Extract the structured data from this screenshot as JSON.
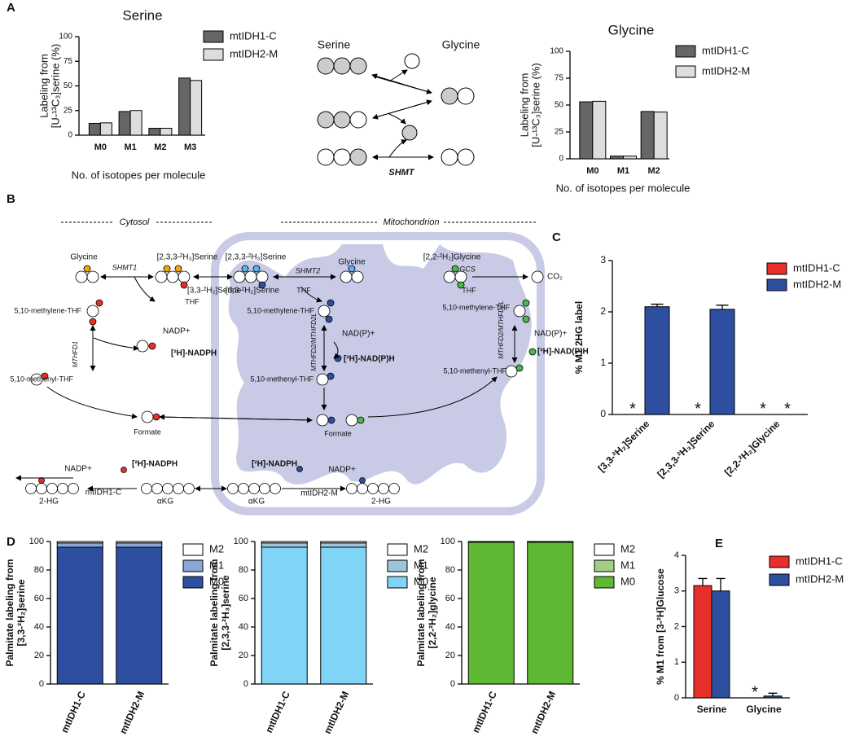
{
  "panel_labels": [
    "A",
    "B",
    "C",
    "D",
    "E"
  ],
  "diagram_a": {
    "left": "Serine",
    "right": "Glycine",
    "enzyme": "SHMT"
  },
  "diagram_b": {
    "labels": [
      "Cytosol",
      "Mitochondrion",
      "Glycine",
      "SHMT1",
      "[2,3,3-²H₃]Serine",
      "[3,3-²H₂]Serine",
      "THF",
      "5,10-methylene-THF",
      "NADP+",
      "MTHFD1",
      "[²H]-NADPH",
      "5,10-methenyl-THF",
      "Formate",
      "[2,3,3-²H₃]Serine",
      "[3,3-²H₂]Serine",
      "SHMT2",
      "Glycine",
      "THF",
      "5,10-methylene-THF",
      "MTHFD2/MTHFD2L",
      "NAD(P)+",
      "[²H]-NAD(P)H",
      "5,10-methenyl-THF",
      "Formate",
      "[2,2-²H₂]Glycine",
      "GCS",
      "CO₂",
      "THF",
      "5,10-methylene-THF",
      "MTHFD2/MTHFD2L",
      "NAD(P)+",
      "[²H]-NAD(P)H",
      "5,10-methenyl-THF",
      "NADP+",
      "[²H]-NADPH",
      "mtIDH1-C",
      "αKG",
      "2-HG",
      "[²H]-NADPH",
      "NADP+",
      "αKG",
      "mtIDH2-M",
      "2-HG"
    ]
  },
  "chart_data": [
    {
      "type": "bar",
      "title": "Serine",
      "categories": [
        "M0",
        "M1",
        "M2",
        "M3"
      ],
      "series": [
        {
          "name": "mtIDH1-C",
          "color": "#666666",
          "values": [
            12,
            24,
            7,
            58
          ]
        },
        {
          "name": "mtIDH2-M",
          "color": "#dddddd",
          "values": [
            12.5,
            25,
            7,
            55.5
          ]
        }
      ],
      "ylim": [
        0,
        100
      ],
      "yticks": [
        0,
        25,
        50,
        75,
        100
      ],
      "ylabel": [
        "Labeling from",
        "[U-¹³C₃]serine (%)"
      ],
      "xlabel": "No. of isotopes per molecule"
    },
    {
      "type": "bar",
      "title": "Glycine",
      "categories": [
        "M0",
        "M1",
        "M2"
      ],
      "series": [
        {
          "name": "mtIDH1-C",
          "color": "#666666",
          "values": [
            53,
            2.5,
            44
          ]
        },
        {
          "name": "mtIDH2-M",
          "color": "#dddddd",
          "values": [
            53.5,
            2.5,
            43.5
          ]
        }
      ],
      "ylim": [
        0,
        100
      ],
      "yticks": [
        0,
        25,
        50,
        75,
        100
      ],
      "ylabel": [
        "Labeling from",
        "[U-¹³C₃]serine (%)"
      ],
      "xlabel": "No. of isotopes per molecule"
    },
    {
      "type": "bar",
      "categories": [
        "[3,3-²H₂]Serine",
        "[2,3,3-²H₃]Serine",
        "[2,2-²H₂]Glycine"
      ],
      "series": [
        {
          "name": "mtIDH1-C",
          "color": "#e8302a",
          "values": [
            0,
            0,
            0
          ],
          "value_labels": [
            "*",
            "*",
            "*"
          ]
        },
        {
          "name": "mtIDH2-M",
          "color": "#2e4ea0",
          "values": [
            2.1,
            2.05,
            0
          ],
          "errors": [
            0.05,
            0.08,
            null
          ],
          "value_labels": [
            null,
            null,
            "*"
          ]
        }
      ],
      "ylim": [
        0,
        3
      ],
      "yticks": [
        0,
        1,
        2,
        3
      ],
      "ylabel": [
        "% M1 2HG label"
      ]
    },
    {
      "type": "bar",
      "stacked": true,
      "categories": [
        "mtIDH1-C",
        "mtIDH2-M"
      ],
      "series": [
        {
          "name": "M0",
          "color": "#2e4ea0",
          "values": [
            96,
            96
          ]
        },
        {
          "name": "M1",
          "color": "#8aa6d8",
          "values": [
            3,
            3
          ]
        },
        {
          "name": "M2",
          "color": "#ffffff",
          "values": [
            1,
            1
          ]
        }
      ],
      "ylim": [
        0,
        100
      ],
      "yticks": [
        0,
        20,
        40,
        60,
        80,
        100
      ],
      "ylabel": [
        "Palmitate labeling from",
        "[3,3-²H₂]serine"
      ]
    },
    {
      "type": "bar",
      "stacked": true,
      "categories": [
        "mtIDH1-C",
        "mtIDH2-M"
      ],
      "series": [
        {
          "name": "M0",
          "color": "#80d4f6",
          "values": [
            96,
            96
          ]
        },
        {
          "name": "M1",
          "color": "#9fc4d8",
          "values": [
            3,
            3
          ]
        },
        {
          "name": "M2",
          "color": "#ffffff",
          "values": [
            1,
            1
          ]
        }
      ],
      "ylim": [
        0,
        100
      ],
      "yticks": [
        0,
        20,
        40,
        60,
        80,
        100
      ],
      "ylabel": [
        "Palmitate labeling from",
        "[2,3,3-²H₃]serine"
      ]
    },
    {
      "type": "bar",
      "stacked": true,
      "categories": [
        "mtIDH1-C",
        "mtIDH2-M"
      ],
      "series": [
        {
          "name": "M0",
          "color": "#5fb832",
          "values": [
            99.5,
            99.5
          ]
        },
        {
          "name": "M1",
          "color": "#a3cf85",
          "values": [
            0.3,
            0.3
          ]
        },
        {
          "name": "M2",
          "color": "#ffffff",
          "values": [
            0.2,
            0.2
          ]
        }
      ],
      "ylim": [
        0,
        100
      ],
      "yticks": [
        0,
        20,
        40,
        60,
        80,
        100
      ],
      "ylabel": [
        "Palmitate labeling from",
        "[2,2-²H₂]glycine"
      ]
    },
    {
      "type": "bar",
      "categories": [
        "Serine",
        "Glycine"
      ],
      "series": [
        {
          "name": "mtIDH1-C",
          "color": "#e8302a",
          "values": [
            3.15,
            0
          ],
          "errors": [
            0.2,
            null
          ],
          "value_labels": [
            null,
            "*"
          ]
        },
        {
          "name": "mtIDH2-M",
          "color": "#2e4ea0",
          "values": [
            3.0,
            0.05
          ],
          "errors": [
            0.35,
            0.08
          ]
        }
      ],
      "ylim": [
        0,
        4
      ],
      "yticks": [
        0,
        1,
        2,
        3,
        4
      ],
      "ylabel": [
        "% M1 from [3-²H]Glucose"
      ]
    }
  ]
}
